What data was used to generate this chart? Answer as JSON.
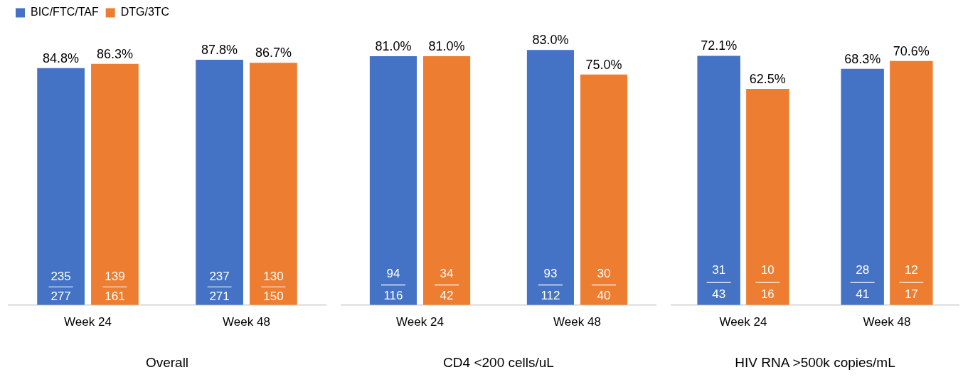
{
  "chart_data": [
    {
      "type": "bar",
      "xlabel": "Overall",
      "categories": [
        "Week 24",
        "Week 48"
      ],
      "tick_labels": "x",
      "grid": false,
      "legend": "top left",
      "data_labels": true,
      "series": [
        {
          "name": "BIC/FTC/TAF",
          "color": "#4472c4",
          "values": [
            84.8,
            87.8
          ],
          "value_labels": [
            "84.8%",
            "87.8%"
          ]
        },
        {
          "name": "DTG/3TC",
          "color": "#ed7d31",
          "values": [
            86.3,
            86.7
          ],
          "value_labels": [
            "86.3%",
            "86.7%"
          ]
        }
      ],
      "annotations": [
        {
          "text": "235",
          "x": "Week 24",
          "y": 10
        },
        {
          "text": "277",
          "x": "Week 24",
          "y": 3
        },
        {
          "text": "139",
          "x": "Week 24",
          "y": 10
        },
        {
          "text": "161",
          "x": "Week 24",
          "y": 3
        },
        {
          "text": "237",
          "x": "Week 48",
          "y": 10
        },
        {
          "text": "271",
          "x": "Week 48",
          "y": 3
        },
        {
          "text": "130",
          "x": "Week 48",
          "y": 10
        },
        {
          "text": "150",
          "x": "Week 48",
          "y": 3
        }
      ]
    },
    {
      "type": "bar",
      "xlabel": "CD4 <200 cells/uL",
      "categories": [
        "Week 24",
        "Week 48"
      ],
      "tick_labels": "x",
      "grid": false,
      "data_labels": true,
      "series": [
        {
          "color": "#4472c4",
          "values": [
            81.0,
            83.0
          ],
          "value_labels": [
            "81.0%",
            "83.0%"
          ]
        },
        {
          "color": "#ed7d31",
          "values": [
            81.0,
            75.0
          ],
          "value_labels": [
            "81.0%",
            "75.0%"
          ]
        }
      ],
      "annotations": [
        {
          "text": "94",
          "x": "Week 24",
          "y": 10
        },
        {
          "text": "116",
          "x": "Week 24",
          "y": 3
        },
        {
          "text": "34",
          "x": "Week 24",
          "y": 10
        },
        {
          "text": "42",
          "x": "Week 24",
          "y": 3
        },
        {
          "text": "93",
          "x": "Week 48",
          "y": 10
        },
        {
          "text": "112",
          "x": "Week 48",
          "y": 3
        },
        {
          "text": "30",
          "x": "Week 48",
          "y": 10
        },
        {
          "text": "40",
          "x": "Week 48",
          "y": 3
        }
      ]
    },
    {
      "type": "bar",
      "xlabel": "HIV RNA >500k copies/mL",
      "categories": [
        "Week 24",
        "Week 48"
      ],
      "tick_labels": "x",
      "grid": false,
      "data_labels": true,
      "series": [
        {
          "color": "#4472c4",
          "values": [
            72.1,
            68.3
          ],
          "value_labels": [
            "72.1%",
            "68.3%"
          ]
        },
        {
          "color": "#ed7d31",
          "values": [
            62.5,
            70.6
          ],
          "value_labels": [
            "62.5%",
            "70.6%"
          ]
        }
      ],
      "annotations": [
        {
          "text": "31",
          "x": "Week 24",
          "y": 10
        },
        {
          "text": "43",
          "x": "Week 24",
          "y": 3
        },
        {
          "text": "10",
          "x": "Week 24",
          "y": 10
        },
        {
          "text": "16",
          "x": "Week 24",
          "y": 3
        },
        {
          "text": "28",
          "x": "Week 48",
          "y": 10
        },
        {
          "text": "41",
          "x": "Week 48",
          "y": 3
        },
        {
          "text": "12",
          "x": "Week 48",
          "y": 10
        },
        {
          "text": "17",
          "x": "Week 48",
          "y": 3
        }
      ]
    }
  ]
}
